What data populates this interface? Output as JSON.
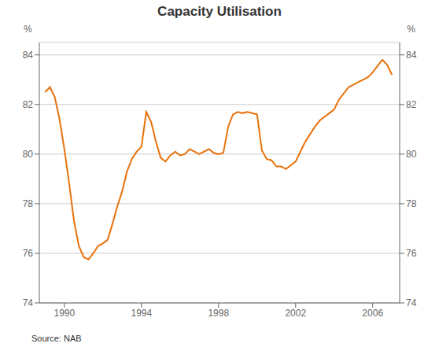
{
  "chart_data": {
    "type": "line",
    "title": "Capacity Utilisation",
    "ylabel": "%",
    "y2label": "%",
    "annotations": [
      "Source: NAB"
    ],
    "x": [
      1989.0,
      1989.25,
      1989.5,
      1989.75,
      1990.0,
      1990.25,
      1990.5,
      1990.75,
      1991.0,
      1991.25,
      1991.5,
      1991.75,
      1992.0,
      1992.25,
      1992.5,
      1992.75,
      1993.0,
      1993.25,
      1993.5,
      1993.75,
      1994.0,
      1994.25,
      1994.5,
      1994.75,
      1995.0,
      1995.25,
      1995.5,
      1995.75,
      1996.0,
      1996.25,
      1996.5,
      1996.75,
      1997.0,
      1997.25,
      1997.5,
      1997.75,
      1998.0,
      1998.25,
      1998.5,
      1998.75,
      1999.0,
      1999.25,
      1999.5,
      1999.75,
      2000.0,
      2000.25,
      2000.5,
      2000.75,
      2001.0,
      2001.25,
      2001.5,
      2001.75,
      2002.0,
      2002.25,
      2002.5,
      2002.75,
      2003.0,
      2003.25,
      2003.5,
      2003.75,
      2004.0,
      2004.25,
      2004.5,
      2004.75,
      2005.0,
      2005.25,
      2005.5,
      2005.75,
      2006.0,
      2006.25,
      2006.5,
      2006.75,
      2007.0
    ],
    "values": [
      82.5,
      82.7,
      82.3,
      81.4,
      80.2,
      78.8,
      77.3,
      76.3,
      75.85,
      75.75,
      76.0,
      76.3,
      76.4,
      76.55,
      77.2,
      77.9,
      78.5,
      79.3,
      79.8,
      80.1,
      80.3,
      81.7,
      81.3,
      80.5,
      79.85,
      79.7,
      79.95,
      80.1,
      79.95,
      80.0,
      80.2,
      80.1,
      80.0,
      80.1,
      80.2,
      80.05,
      80.0,
      80.05,
      81.1,
      81.6,
      81.7,
      81.65,
      81.7,
      81.65,
      81.6,
      80.15,
      79.8,
      79.75,
      79.5,
      79.5,
      79.4,
      79.55,
      79.7,
      80.1,
      80.5,
      80.8,
      81.1,
      81.35,
      81.5,
      81.65,
      81.8,
      82.2,
      82.45,
      82.7,
      82.8,
      82.9,
      83.0,
      83.1,
      83.3,
      83.55,
      83.8,
      83.6,
      83.2
    ],
    "color": "#E8720C",
    "xlim": [
      1988.7,
      2007.4
    ],
    "xticks": [
      1990,
      1994,
      1998,
      2002,
      2006
    ],
    "ylim": [
      74,
      84.5
    ],
    "yticks": [
      74,
      76,
      78,
      80,
      82,
      84
    ],
    "y2lim": [
      74,
      84.5
    ],
    "y2ticks": [
      74,
      76,
      78,
      80,
      82,
      84
    ],
    "grid": "y"
  }
}
